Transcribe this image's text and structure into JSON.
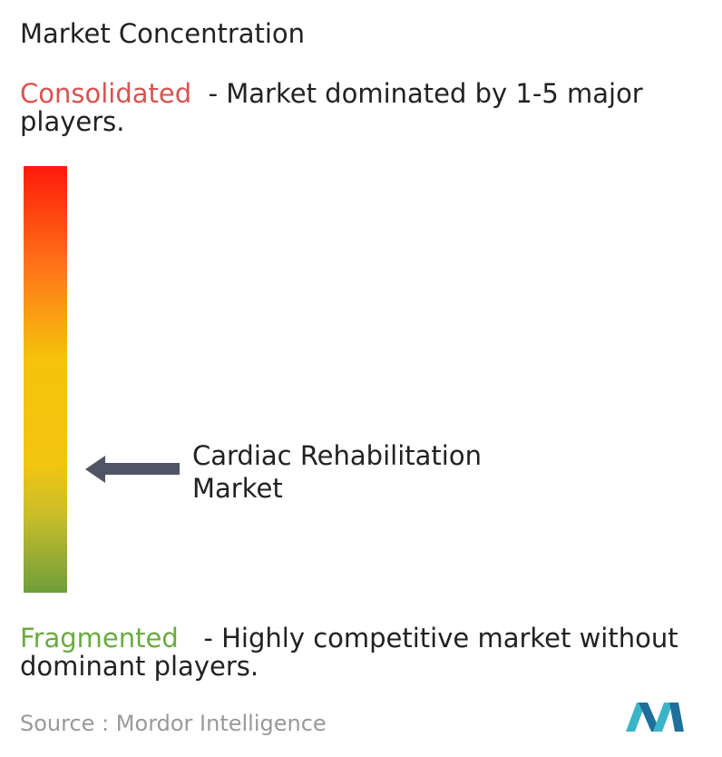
{
  "title": "Market Concentration",
  "consolidated": {
    "label": "Consolidated",
    "description": "- Market dominated by 1-5 major players."
  },
  "market": {
    "label": "Cardiac Rehabilitation Market"
  },
  "fragmented": {
    "label": "Fragmented",
    "description": "- Highly competitive market without dominant players."
  },
  "source": {
    "label": "Source :",
    "name": "Mordor Intelligence"
  }
}
